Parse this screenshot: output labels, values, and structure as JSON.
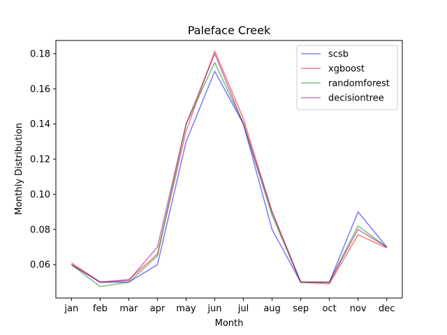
{
  "chart_data": {
    "type": "line",
    "title": "Paleface Creek",
    "xlabel": "Month",
    "ylabel": "Monthly Distribution",
    "categories": [
      "jan",
      "feb",
      "mar",
      "apr",
      "may",
      "jun",
      "jul",
      "aug",
      "sep",
      "oct",
      "nov",
      "dec"
    ],
    "ylim": [
      0.041,
      0.1875
    ],
    "yticks": [
      0.06,
      0.08,
      0.1,
      0.12,
      0.14,
      0.16,
      0.18
    ],
    "ytick_labels": [
      "0.06",
      "0.08",
      "0.10",
      "0.12",
      "0.14",
      "0.16",
      "0.18"
    ],
    "grid": false,
    "legend": "top-right",
    "series": [
      {
        "name": "scsb",
        "color": "#0000ff",
        "values": [
          0.06,
          0.05,
          0.05,
          0.06,
          0.13,
          0.17,
          0.14,
          0.08,
          0.05,
          0.05,
          0.09,
          0.07
        ]
      },
      {
        "name": "xgboost",
        "color": "#ff0000",
        "values": [
          0.061,
          0.05,
          0.0515,
          0.066,
          0.136,
          0.1815,
          0.143,
          0.09,
          0.05,
          0.049,
          0.077,
          0.0695
        ]
      },
      {
        "name": "randomforest",
        "color": "#008000",
        "values": [
          0.06,
          0.0475,
          0.05,
          0.065,
          0.14,
          0.175,
          0.14,
          0.088,
          0.05,
          0.05,
          0.082,
          0.07
        ]
      },
      {
        "name": "decisiontree",
        "color": "#800080",
        "values": [
          0.06,
          0.05,
          0.051,
          0.07,
          0.14,
          0.18,
          0.14,
          0.09,
          0.05,
          0.05,
          0.08,
          0.07
        ]
      }
    ]
  }
}
